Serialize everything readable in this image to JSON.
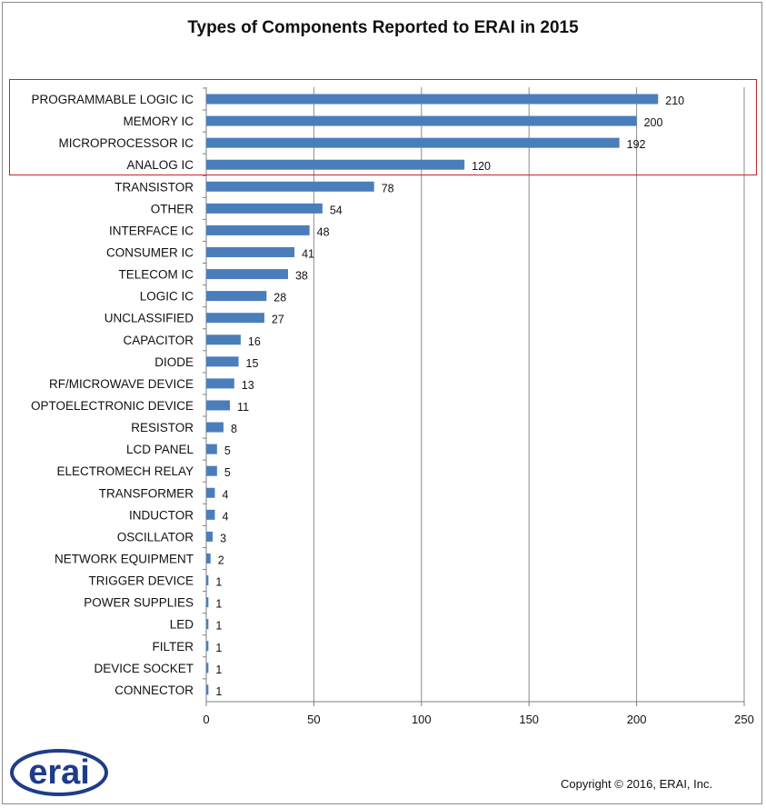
{
  "chart_data": {
    "type": "bar",
    "orientation": "horizontal",
    "title": "Types of Components  Reported to ERAI in 2015",
    "categories": [
      "PROGRAMMABLE LOGIC IC",
      "MEMORY IC",
      "MICROPROCESSOR IC",
      "ANALOG IC",
      "TRANSISTOR",
      "OTHER",
      "INTERFACE IC",
      "CONSUMER IC",
      "TELECOM IC",
      "LOGIC IC",
      "UNCLASSIFIED",
      "CAPACITOR",
      "DIODE",
      "RF/MICROWAVE DEVICE",
      "OPTOELECTRONIC DEVICE",
      "RESISTOR",
      "LCD PANEL",
      "ELECTROMECH RELAY",
      "TRANSFORMER",
      "INDUCTOR",
      "OSCILLATOR",
      "NETWORK EQUIPMENT",
      "TRIGGER DEVICE",
      "POWER SUPPLIES",
      "LED",
      "FILTER",
      "DEVICE SOCKET",
      "CONNECTOR"
    ],
    "values": [
      210,
      200,
      192,
      120,
      78,
      54,
      48,
      41,
      38,
      28,
      27,
      16,
      15,
      13,
      11,
      8,
      5,
      5,
      4,
      4,
      3,
      2,
      1,
      1,
      1,
      1,
      1,
      1
    ],
    "xlim": [
      0,
      250
    ],
    "xticks": [
      0,
      50,
      100,
      150,
      200,
      250
    ],
    "grid": true,
    "data_labels": true,
    "bar_color": "#4a7ebb",
    "highlighted_categories": [
      "PROGRAMMABLE LOGIC IC",
      "MEMORY IC",
      "MICROPROCESSOR IC",
      "ANALOG IC"
    ],
    "highlight_color": "#c0262d"
  },
  "logo": {
    "text": "erai",
    "color": "#1f3c88"
  },
  "footer": {
    "copyright": "Copyright © 2016, ERAI, Inc."
  }
}
